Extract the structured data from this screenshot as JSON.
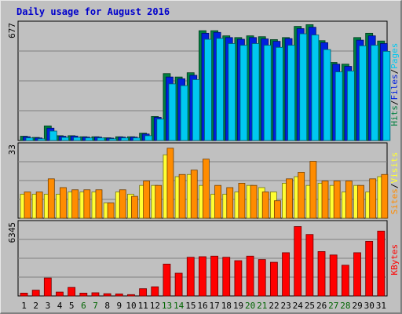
{
  "chart_data": {
    "type": "bar",
    "title": "Daily usage for August 2016",
    "categories": [
      "1",
      "2",
      "3",
      "4",
      "5",
      "6",
      "7",
      "8",
      "9",
      "10",
      "11",
      "12",
      "13",
      "14",
      "15",
      "16",
      "17",
      "18",
      "19",
      "20",
      "21",
      "22",
      "23",
      "24",
      "25",
      "26",
      "27",
      "28",
      "29",
      "30",
      "31"
    ],
    "weekend_days": [
      "6",
      "7",
      "13",
      "14",
      "20",
      "21",
      "27",
      "28"
    ],
    "colors": {
      "title": "#0000cc",
      "weekday_label": "#000000",
      "weekend_label": "#006400",
      "hits": "#008040",
      "files": "#0020e0",
      "pages": "#00c8f0",
      "visits": "#ffff33",
      "sites": "#ff8c00",
      "kbytes": "#ff0000",
      "label_sep": "#000000"
    },
    "panels": [
      {
        "name": "hits-files-pages",
        "ymax_label": "677",
        "ylim": [
          0,
          677
        ],
        "series": [
          {
            "name": "Hits",
            "values": [
              25,
              18,
              85,
              28,
              28,
              22,
              22,
              16,
              22,
              22,
              43,
              140,
              390,
              370,
              395,
              640,
              640,
              610,
              600,
              610,
              605,
              588,
              600,
              665,
              675,
              582,
              455,
              445,
              600,
              625,
              580
            ]
          },
          {
            "name": "Files",
            "values": [
              22,
              15,
              72,
              25,
              26,
              20,
              20,
              14,
              20,
              20,
              38,
              135,
              370,
              360,
              380,
              625,
              630,
              600,
              590,
              600,
              592,
              578,
              594,
              652,
              660,
              570,
              445,
              432,
              585,
              610,
              565
            ]
          },
          {
            "name": "Pages",
            "values": [
              15,
              10,
              55,
              18,
              18,
              15,
              15,
              10,
              15,
              15,
              28,
              125,
              330,
              320,
              355,
              590,
              595,
              565,
              555,
              565,
              555,
              543,
              555,
              622,
              615,
              530,
              400,
              405,
              552,
              555,
              520
            ]
          }
        ],
        "labels": [
          {
            "text": "Hits",
            "color_key": "hits"
          },
          {
            "text": "Files",
            "color_key": "files"
          },
          {
            "text": "Pages",
            "color_key": "pages"
          }
        ]
      },
      {
        "name": "visits-sites",
        "ymax_label": "33",
        "ylim": [
          0,
          33
        ],
        "series": [
          {
            "name": "Visits",
            "values": [
              11,
              11,
              11,
              11,
              12,
              12,
              12,
              7,
              12,
              11,
              15,
              15,
              29,
              19,
              20,
              15,
              11,
              11,
              12,
              15,
              14,
              12,
              16,
              19,
              15,
              16,
              15,
              12,
              15,
              12,
              19
            ]
          },
          {
            "name": "Sites",
            "values": [
              12,
              12,
              18,
              14,
              13,
              13,
              13,
              7,
              13,
              10,
              17,
              15,
              32,
              20,
              22,
              27,
              15,
              14,
              16,
              15,
              12,
              8,
              18,
              21,
              26,
              17,
              17,
              17,
              15,
              18,
              20
            ]
          }
        ],
        "labels": [
          {
            "text": "Sites",
            "color_key": "sites"
          },
          {
            "text": "Visits",
            "color_key": "visits"
          }
        ]
      },
      {
        "name": "kbytes",
        "ymax_label": "6345",
        "ylim": [
          0,
          6345
        ],
        "series": [
          {
            "name": "KBytes",
            "values": [
              250,
              510,
              1580,
              340,
              750,
              250,
              280,
              200,
              180,
              120,
              640,
              800,
              2800,
              2000,
              3400,
              3450,
              3500,
              3400,
              3100,
              3500,
              3200,
              2960,
              3800,
              6100,
              5400,
              3900,
              3600,
              2700,
              3800,
              4800,
              5700
            ]
          }
        ],
        "labels": [
          {
            "text": "KBytes",
            "color_key": "kbytes"
          }
        ]
      }
    ]
  }
}
